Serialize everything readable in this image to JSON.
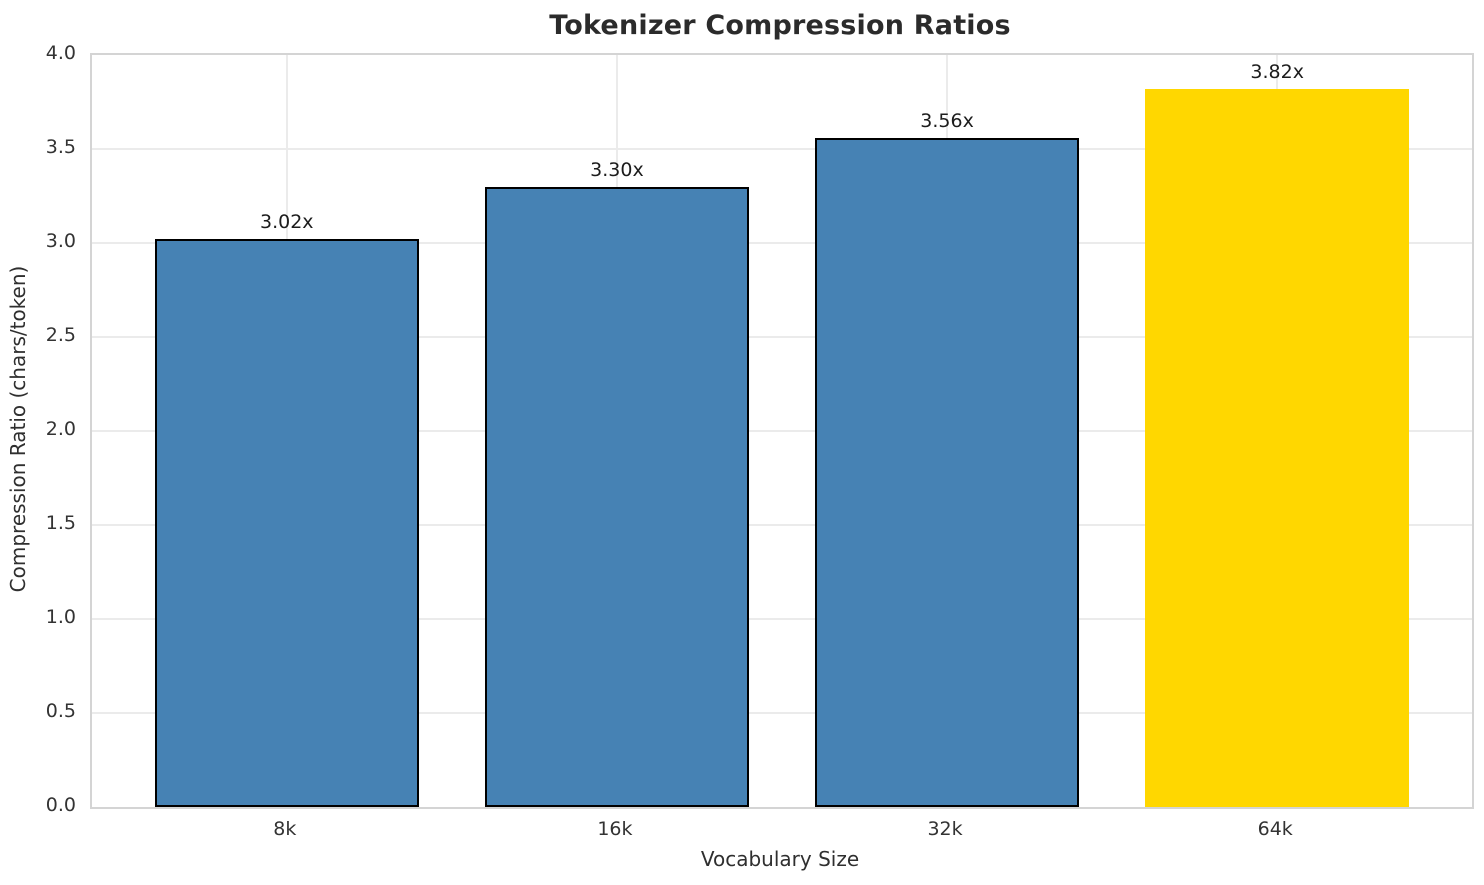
{
  "chart_data": {
    "type": "bar",
    "title": "Tokenizer Compression Ratios",
    "xlabel": "Vocabulary Size",
    "ylabel": "Compression Ratio (chars/token)",
    "categories": [
      "8k",
      "16k",
      "32k",
      "64k"
    ],
    "values": [
      3.02,
      3.3,
      3.56,
      3.82
    ],
    "bar_labels": [
      "3.02x",
      "3.30x",
      "3.56x",
      "3.82x"
    ],
    "ylim": [
      0.0,
      4.0
    ],
    "ytick_step": 0.5,
    "yticks": [
      "0.0",
      "0.5",
      "1.0",
      "1.5",
      "2.0",
      "2.5",
      "3.0",
      "3.5",
      "4.0"
    ],
    "grid": true,
    "legend": "none",
    "bar_colors": [
      "#4682B4",
      "#4682B4",
      "#4682B4",
      "#FFD700"
    ],
    "bar_edge_colors": [
      "#000000",
      "#000000",
      "#000000",
      "none"
    ],
    "base_color": "#4682B4",
    "highlight_color": "#FFD700",
    "grid_color": "#ebebeb",
    "spine_color": "#d4d4d4",
    "text_color": "#2b2b2b"
  }
}
